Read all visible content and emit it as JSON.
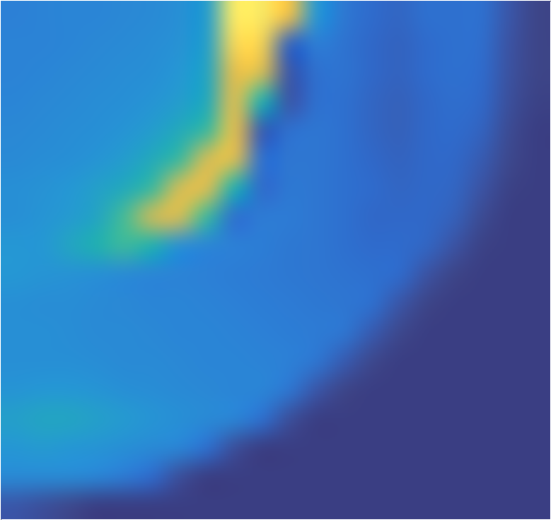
{
  "chart_data": {
    "type": "heatmap",
    "x": [
      -0.285,
      0.145,
      0.575,
      1.005,
      1.435,
      1.865,
      2.295,
      2.725,
      3.155,
      3.585,
      4.015,
      4.445,
      4.875,
      5.305,
      5.735,
      6.165,
      6.595,
      7.025,
      7.455,
      7.885
    ],
    "y": [
      7.775,
      7.325,
      6.875,
      6.425,
      5.975,
      5.525,
      5.075,
      4.625,
      4.175,
      3.725,
      3.275,
      2.825,
      2.375,
      1.925,
      1.475,
      1.025,
      0.575,
      0.125
    ],
    "z": [
      [
        0.36,
        0.37,
        0.38,
        0.38,
        0.39,
        0.4,
        0.42,
        0.47,
        0.98,
        0.97,
        0.85,
        0.45,
        0.33,
        0.28,
        0.26,
        0.3,
        0.3,
        0.3,
        0.2,
        0.08
      ],
      [
        0.37,
        0.37,
        0.38,
        0.39,
        0.4,
        0.41,
        0.43,
        0.48,
        0.92,
        0.9,
        0.25,
        0.35,
        0.31,
        0.27,
        0.25,
        0.28,
        0.3,
        0.29,
        0.18,
        0.08
      ],
      [
        0.37,
        0.38,
        0.39,
        0.4,
        0.41,
        0.42,
        0.45,
        0.5,
        0.82,
        0.78,
        0.2,
        0.3,
        0.31,
        0.27,
        0.25,
        0.28,
        0.3,
        0.28,
        0.17,
        0.08
      ],
      [
        0.38,
        0.39,
        0.4,
        0.41,
        0.42,
        0.44,
        0.47,
        0.52,
        0.8,
        0.55,
        0.2,
        0.3,
        0.3,
        0.26,
        0.24,
        0.27,
        0.29,
        0.27,
        0.15,
        0.07
      ],
      [
        0.39,
        0.4,
        0.41,
        0.42,
        0.44,
        0.47,
        0.52,
        0.6,
        0.82,
        0.22,
        0.3,
        0.32,
        0.3,
        0.26,
        0.24,
        0.27,
        0.28,
        0.25,
        0.12,
        0.06
      ],
      [
        0.4,
        0.41,
        0.42,
        0.44,
        0.47,
        0.52,
        0.6,
        0.78,
        0.8,
        0.3,
        0.32,
        0.32,
        0.3,
        0.27,
        0.25,
        0.27,
        0.27,
        0.22,
        0.1,
        0.06
      ],
      [
        0.42,
        0.43,
        0.45,
        0.48,
        0.52,
        0.6,
        0.78,
        0.8,
        0.55,
        0.28,
        0.33,
        0.32,
        0.3,
        0.28,
        0.26,
        0.27,
        0.26,
        0.18,
        0.07,
        0.06
      ],
      [
        0.42,
        0.44,
        0.46,
        0.5,
        0.62,
        0.75,
        0.78,
        0.6,
        0.3,
        0.34,
        0.34,
        0.32,
        0.3,
        0.27,
        0.27,
        0.27,
        0.24,
        0.12,
        0.06,
        0.06
      ],
      [
        0.45,
        0.45,
        0.5,
        0.55,
        0.6,
        0.55,
        0.42,
        0.38,
        0.36,
        0.35,
        0.33,
        0.32,
        0.3,
        0.28,
        0.28,
        0.26,
        0.18,
        0.07,
        0.06,
        0.06
      ],
      [
        0.45,
        0.44,
        0.43,
        0.42,
        0.4,
        0.38,
        0.37,
        0.36,
        0.35,
        0.34,
        0.33,
        0.32,
        0.31,
        0.3,
        0.28,
        0.18,
        0.08,
        0.06,
        0.06,
        0.06
      ],
      [
        0.42,
        0.41,
        0.41,
        0.4,
        0.39,
        0.38,
        0.38,
        0.37,
        0.36,
        0.35,
        0.34,
        0.33,
        0.32,
        0.3,
        0.2,
        0.08,
        0.06,
        0.06,
        0.06,
        0.06
      ],
      [
        0.42,
        0.42,
        0.41,
        0.4,
        0.4,
        0.39,
        0.38,
        0.38,
        0.37,
        0.36,
        0.35,
        0.34,
        0.32,
        0.22,
        0.1,
        0.06,
        0.06,
        0.06,
        0.06,
        0.06
      ],
      [
        0.42,
        0.42,
        0.42,
        0.41,
        0.4,
        0.4,
        0.39,
        0.38,
        0.38,
        0.37,
        0.36,
        0.32,
        0.22,
        0.1,
        0.06,
        0.06,
        0.06,
        0.06,
        0.06,
        0.06
      ],
      [
        0.44,
        0.45,
        0.45,
        0.44,
        0.42,
        0.41,
        0.4,
        0.39,
        0.38,
        0.38,
        0.32,
        0.2,
        0.08,
        0.06,
        0.06,
        0.06,
        0.06,
        0.06,
        0.06,
        0.06
      ],
      [
        0.48,
        0.5,
        0.5,
        0.48,
        0.46,
        0.44,
        0.42,
        0.4,
        0.38,
        0.3,
        0.15,
        0.06,
        0.06,
        0.06,
        0.06,
        0.06,
        0.06,
        0.06,
        0.06,
        0.06
      ],
      [
        0.45,
        0.46,
        0.45,
        0.44,
        0.42,
        0.4,
        0.38,
        0.3,
        0.15,
        0.06,
        0.06,
        0.06,
        0.06,
        0.06,
        0.06,
        0.06,
        0.06,
        0.06,
        0.06,
        0.06
      ],
      [
        0.4,
        0.4,
        0.4,
        0.38,
        0.34,
        0.28,
        0.15,
        0.06,
        0.06,
        0.06,
        0.06,
        0.06,
        0.06,
        0.06,
        0.06,
        0.06,
        0.06,
        0.06,
        0.06,
        0.06
      ],
      [
        0.2,
        0.15,
        0.1,
        0.06,
        0.06,
        0.06,
        0.06,
        0.06,
        0.06,
        0.06,
        0.06,
        0.06,
        0.06,
        0.06,
        0.06,
        0.06,
        0.06,
        0.06,
        0.06,
        0.06
      ]
    ],
    "zlim": [
      0,
      1
    ],
    "xlim": [
      -0.5,
      8.1
    ],
    "ylim": [
      -0.1,
      8
    ],
    "xticks": [
      0,
      1,
      2,
      3,
      4,
      5,
      6,
      7,
      8
    ],
    "yticks": [
      0,
      1,
      2,
      3,
      4,
      5,
      6,
      7,
      8
    ],
    "grid": true,
    "tick_labels": false
  }
}
